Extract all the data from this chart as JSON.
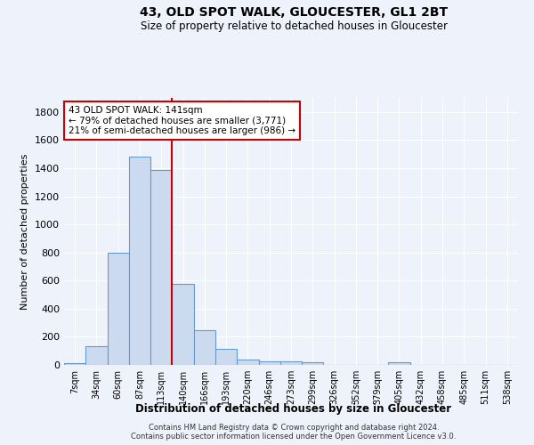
{
  "title_line1": "43, OLD SPOT WALK, GLOUCESTER, GL1 2BT",
  "title_line2": "Size of property relative to detached houses in Gloucester",
  "xlabel": "Distribution of detached houses by size in Gloucester",
  "ylabel": "Number of detached properties",
  "categories": [
    "7sqm",
    "34sqm",
    "60sqm",
    "87sqm",
    "113sqm",
    "140sqm",
    "166sqm",
    "193sqm",
    "220sqm",
    "246sqm",
    "273sqm",
    "299sqm",
    "326sqm",
    "352sqm",
    "379sqm",
    "405sqm",
    "432sqm",
    "458sqm",
    "485sqm",
    "511sqm",
    "538sqm"
  ],
  "values": [
    10,
    130,
    795,
    1480,
    1390,
    575,
    250,
    115,
    35,
    28,
    28,
    20,
    0,
    0,
    0,
    18,
    0,
    0,
    0,
    0,
    0
  ],
  "bar_color": "#ccdaf0",
  "bar_edge_color": "#6699cc",
  "vline_color": "#cc0000",
  "vline_x_index": 4.5,
  "annotation_text": "43 OLD SPOT WALK: 141sqm\n← 79% of detached houses are smaller (3,771)\n21% of semi-detached houses are larger (986) →",
  "annotation_box_color": "#ffffff",
  "annotation_box_edge_color": "#cc0000",
  "ylim": [
    0,
    1900
  ],
  "yticks": [
    0,
    200,
    400,
    600,
    800,
    1000,
    1200,
    1400,
    1600,
    1800
  ],
  "background_color": "#eef2fa",
  "grid_color": "#ffffff",
  "footer_line1": "Contains HM Land Registry data © Crown copyright and database right 2024.",
  "footer_line2": "Contains public sector information licensed under the Open Government Licence v3.0."
}
